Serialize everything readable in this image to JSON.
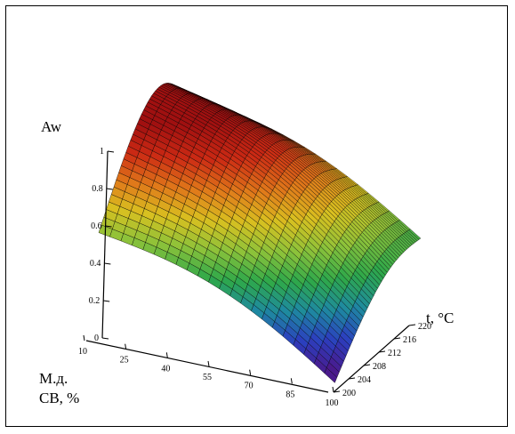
{
  "chart_data": {
    "type": "surface",
    "title": "",
    "zlabel": "Aw",
    "xlabel": [
      "М.д.",
      "СВ, %"
    ],
    "ylabel": "t, °C",
    "x_ticks": [
      10,
      25,
      40,
      55,
      70,
      85,
      100
    ],
    "y_ticks": [
      200,
      204,
      208,
      212,
      216,
      220
    ],
    "z_ticks": [
      0,
      0.2,
      0.4,
      0.6,
      0.8,
      1
    ],
    "x_range": [
      10,
      100
    ],
    "y_range": [
      200,
      220
    ],
    "z_range": [
      0,
      1
    ],
    "surface_corners": [
      {
        "x": 10,
        "y": 200,
        "z": 0.57
      },
      {
        "x": 10,
        "y": 220,
        "z": 0.95
      },
      {
        "x": 100,
        "y": 200,
        "z": 0.05
      },
      {
        "x": 100,
        "y": 220,
        "z": 0.46
      }
    ],
    "surface_peak_z": 1.0,
    "colormap": [
      "#4a1a8c",
      "#2b3fbf",
      "#1e8aa0",
      "#2ea84a",
      "#8cc23a",
      "#d9c020",
      "#e0781a",
      "#cc2a14",
      "#a01010"
    ],
    "mesh_color": "#000000"
  }
}
